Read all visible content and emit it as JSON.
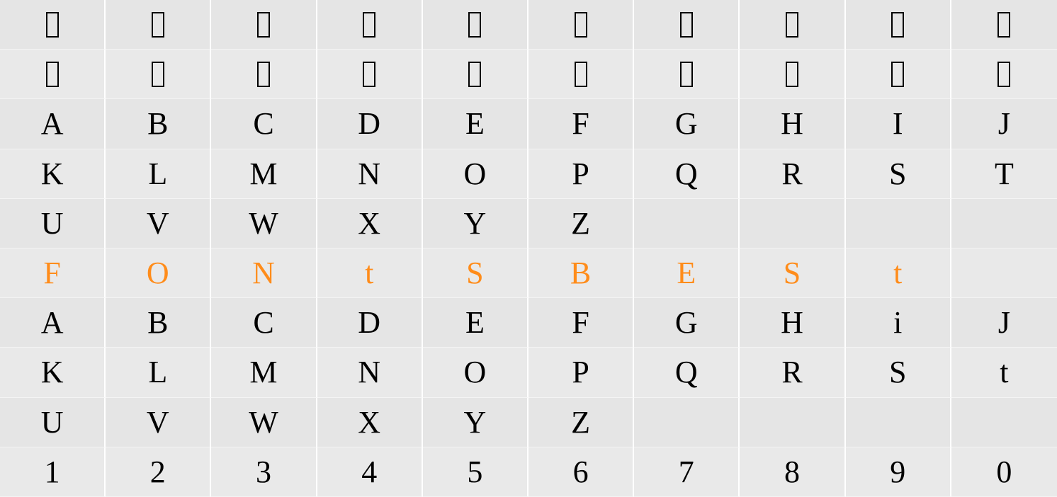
{
  "grid": {
    "type": "character-map",
    "columns": 10,
    "rows": 10,
    "background_color": "#e8e8e8",
    "row_alt_color_a": "#e5e5e5",
    "row_alt_color_b": "#e9e9e9",
    "divider_color": "#ffffff",
    "glyph_color": "#000000",
    "highlight_color": "#ff8c1a",
    "glyph_fontsize": 44,
    "cell_height": 70.2,
    "rows_data": [
      {
        "type": "notdef",
        "cells": [
          "□",
          "□",
          "□",
          "□",
          "□",
          "□",
          "□",
          "□",
          "□",
          "□"
        ],
        "highlight": false
      },
      {
        "type": "notdef",
        "cells": [
          "□",
          "□",
          "□",
          "□",
          "□",
          "□",
          "□",
          "□",
          "□",
          "□"
        ],
        "highlight": false
      },
      {
        "type": "glyph",
        "cells": [
          "A",
          "B",
          "C",
          "D",
          "E",
          "F",
          "G",
          "H",
          "I",
          "J"
        ],
        "highlight": false
      },
      {
        "type": "glyph",
        "cells": [
          "K",
          "L",
          "M",
          "N",
          "O",
          "P",
          "Q",
          "R",
          "S",
          "T"
        ],
        "highlight": false
      },
      {
        "type": "glyph",
        "cells": [
          "U",
          "V",
          "W",
          "X",
          "Y",
          "Z",
          "",
          "",
          "",
          ""
        ],
        "highlight": false
      },
      {
        "type": "glyph",
        "cells": [
          "F",
          "O",
          "N",
          "t",
          "S",
          "B",
          "E",
          "S",
          "t",
          ""
        ],
        "highlight": true
      },
      {
        "type": "glyph",
        "cells": [
          "A",
          "B",
          "C",
          "D",
          "E",
          "F",
          "G",
          "H",
          "i",
          "J"
        ],
        "highlight": false
      },
      {
        "type": "glyph",
        "cells": [
          "K",
          "L",
          "M",
          "N",
          "O",
          "P",
          "Q",
          "R",
          "S",
          "t"
        ],
        "highlight": false
      },
      {
        "type": "glyph",
        "cells": [
          "U",
          "V",
          "W",
          "X",
          "Y",
          "Z",
          "",
          "",
          "",
          ""
        ],
        "highlight": false
      },
      {
        "type": "glyph",
        "cells": [
          "1",
          "2",
          "3",
          "4",
          "5",
          "6",
          "7",
          "8",
          "9",
          "0"
        ],
        "highlight": false
      }
    ]
  }
}
